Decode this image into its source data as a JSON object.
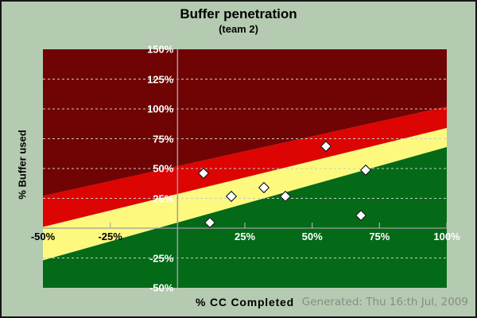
{
  "chart_data": {
    "type": "scatter",
    "title": "Buffer penetration",
    "subtitle": "(team 2)",
    "xlabel": "% CC Completed",
    "ylabel": "% Buffer used",
    "xlim": [
      -50,
      100
    ],
    "ylim": [
      -50,
      150
    ],
    "grid": "dashed horizontal",
    "legend": "none",
    "gridlines_y": [
      125,
      100,
      75,
      50,
      25,
      -25
    ],
    "x_tick_marks": [
      -25,
      25,
      50,
      75,
      100
    ],
    "y_ticks": [
      {
        "value": 150,
        "label": "150%"
      },
      {
        "value": 125,
        "label": "125%"
      },
      {
        "value": 100,
        "label": "100%"
      },
      {
        "value": 75,
        "label": "75%"
      },
      {
        "value": 50,
        "label": "50%"
      },
      {
        "value": 25,
        "label": "25%"
      },
      {
        "value": -25,
        "label": "-25%"
      },
      {
        "value": -50,
        "label": "-50%"
      }
    ],
    "x_ticks": [
      {
        "value": -50,
        "label": "-50%",
        "color": "#000000"
      },
      {
        "value": -25,
        "label": "-25%",
        "color": "#000000"
      },
      {
        "value": 25,
        "label": "25%",
        "color": "#ffffff"
      },
      {
        "value": 50,
        "label": "50%",
        "color": "#ffffff"
      },
      {
        "value": 75,
        "label": "75%",
        "color": "#ffffff"
      },
      {
        "value": 100,
        "label": "100%",
        "color": "#ffffff"
      }
    ],
    "points": [
      {
        "x": 9.5,
        "y": 46
      },
      {
        "x": 12,
        "y": 5
      },
      {
        "x": 20,
        "y": 27
      },
      {
        "x": 32,
        "y": 34
      },
      {
        "x": 40,
        "y": 27
      },
      {
        "x": 55,
        "y": 69
      },
      {
        "x": 70,
        "y": 49
      },
      {
        "x": 68,
        "y": 11
      }
    ],
    "zones": [
      {
        "name": "dark-red-act",
        "color": "#700404",
        "polygon": [
          [
            -50,
            150
          ],
          [
            100,
            150
          ],
          [
            100,
            102
          ],
          [
            -50,
            27
          ]
        ]
      },
      {
        "name": "red-act",
        "color": "#dd0404",
        "polygon": [
          [
            -50,
            27
          ],
          [
            100,
            102
          ],
          [
            100,
            84
          ],
          [
            -50,
            1
          ]
        ]
      },
      {
        "name": "yellow-watch",
        "color": "#fcf97e",
        "polygon": [
          [
            -50,
            1
          ],
          [
            100,
            84
          ],
          [
            100,
            68
          ],
          [
            -50,
            -27
          ]
        ]
      },
      {
        "name": "green-ok",
        "color": "#046a18",
        "polygon": [
          [
            -50,
            -27
          ],
          [
            100,
            68
          ],
          [
            100,
            -50
          ],
          [
            -50,
            -50
          ]
        ]
      }
    ]
  },
  "footer": {
    "generated": "Generated: Thu 16:th Jul, 2009"
  },
  "colors": {
    "background": "#b5cbb1",
    "grid": "#c6cec2",
    "axis_line": "#9e9e9e",
    "tick": "#aab2aa",
    "point_fill": "#ffffff",
    "point_border": "#000000",
    "y_tick_label": "#ffffff",
    "footer_text": "#858d85",
    "border": "#161616"
  }
}
